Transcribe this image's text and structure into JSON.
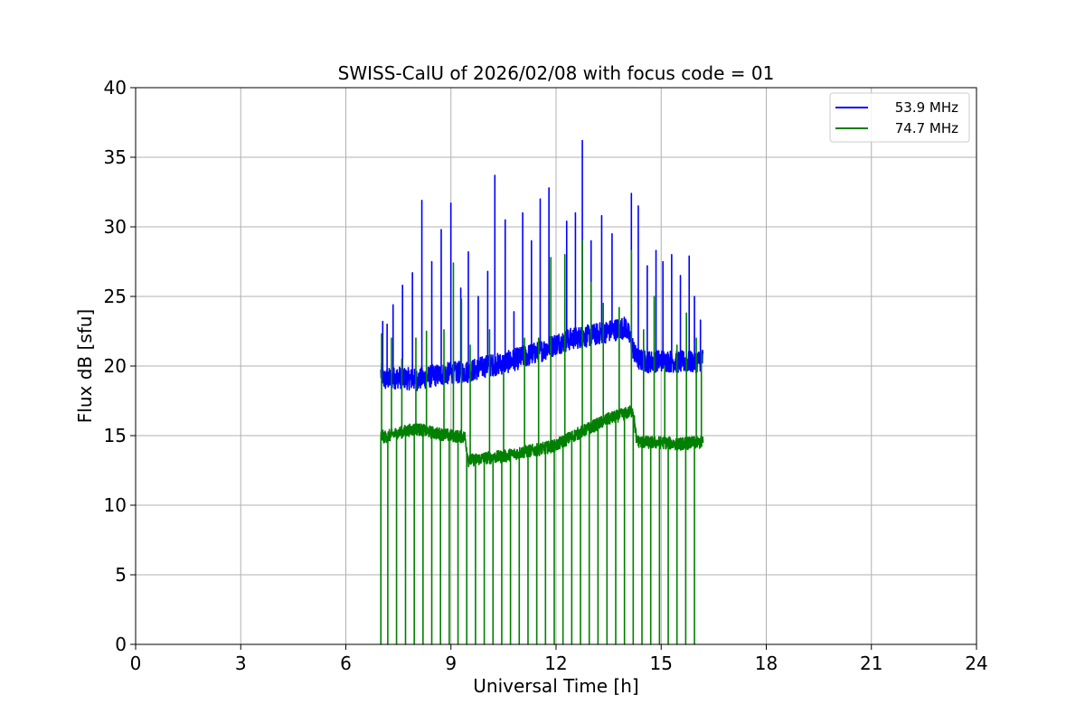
{
  "chart_data": {
    "type": "line",
    "title": "SWISS-CalU of 2026/02/08 with focus code = 01",
    "xlabel": "Universal Time [h]",
    "ylabel": "Flux dB [sfu]",
    "xlim": [
      0,
      24
    ],
    "ylim": [
      0,
      40
    ],
    "xticks": [
      0,
      3,
      6,
      9,
      12,
      15,
      18,
      21,
      24
    ],
    "yticks": [
      0,
      5,
      10,
      15,
      20,
      25,
      30,
      35,
      40
    ],
    "grid": true,
    "legend_position": "top-right",
    "series": [
      {
        "name": "53.9 MHz",
        "color": "#0000ff",
        "x": [
          7.0,
          7.1,
          7.5,
          8.0,
          8.5,
          9.0,
          9.5,
          10.0,
          10.5,
          11.0,
          11.5,
          12.0,
          12.5,
          13.0,
          13.5,
          14.0,
          14.3,
          14.6,
          15.0,
          15.5,
          16.0,
          16.2
        ],
        "y": [
          19.5,
          19.0,
          19.2,
          19.0,
          19.3,
          19.5,
          19.6,
          20.0,
          20.2,
          20.6,
          21.0,
          21.6,
          22.0,
          22.2,
          22.5,
          22.8,
          20.5,
          20.3,
          20.4,
          20.3,
          20.3,
          20.5
        ],
        "spikes": [
          {
            "x": 7.05,
            "y": 23.2
          },
          {
            "x": 7.18,
            "y": 23.0
          },
          {
            "x": 7.35,
            "y": 24.4
          },
          {
            "x": 7.62,
            "y": 25.8
          },
          {
            "x": 7.9,
            "y": 26.7
          },
          {
            "x": 8.17,
            "y": 31.9
          },
          {
            "x": 8.45,
            "y": 27.5
          },
          {
            "x": 8.72,
            "y": 29.8
          },
          {
            "x": 9.0,
            "y": 31.7
          },
          {
            "x": 9.28,
            "y": 25.6
          },
          {
            "x": 9.5,
            "y": 28.2
          },
          {
            "x": 9.78,
            "y": 25.0
          },
          {
            "x": 10.05,
            "y": 26.8
          },
          {
            "x": 10.25,
            "y": 33.7
          },
          {
            "x": 10.55,
            "y": 30.5
          },
          {
            "x": 10.8,
            "y": 23.9
          },
          {
            "x": 11.05,
            "y": 31.0
          },
          {
            "x": 11.3,
            "y": 29.0
          },
          {
            "x": 11.55,
            "y": 32.0
          },
          {
            "x": 11.8,
            "y": 32.8
          },
          {
            "x": 12.3,
            "y": 30.4
          },
          {
            "x": 12.55,
            "y": 31.0
          },
          {
            "x": 12.75,
            "y": 36.2
          },
          {
            "x": 13.0,
            "y": 29.0
          },
          {
            "x": 13.3,
            "y": 30.8
          },
          {
            "x": 13.6,
            "y": 29.5
          },
          {
            "x": 14.15,
            "y": 32.4
          },
          {
            "x": 14.35,
            "y": 31.5
          },
          {
            "x": 14.6,
            "y": 27.2
          },
          {
            "x": 14.85,
            "y": 28.3
          },
          {
            "x": 15.05,
            "y": 27.5
          },
          {
            "x": 15.3,
            "y": 28.0
          },
          {
            "x": 15.55,
            "y": 26.5
          },
          {
            "x": 15.8,
            "y": 27.9
          },
          {
            "x": 15.95,
            "y": 25.0
          },
          {
            "x": 16.12,
            "y": 23.3
          }
        ]
      },
      {
        "name": "74.7 MHz",
        "color": "#008000",
        "x": [
          7.0,
          7.1,
          7.5,
          8.0,
          8.5,
          9.0,
          9.4,
          9.5,
          10.0,
          10.5,
          11.0,
          11.5,
          12.0,
          12.5,
          13.0,
          13.5,
          14.0,
          14.2,
          14.3,
          14.6,
          15.0,
          15.5,
          16.0,
          16.2
        ],
        "y": [
          15.0,
          14.9,
          15.2,
          15.5,
          15.2,
          15.0,
          14.9,
          13.2,
          13.4,
          13.5,
          13.8,
          14.0,
          14.3,
          15.0,
          15.6,
          16.2,
          16.6,
          16.8,
          14.6,
          14.5,
          14.5,
          14.4,
          14.5,
          14.5
        ],
        "dropouts": [
          7.0,
          7.2,
          7.45,
          7.7,
          7.95,
          8.2,
          8.45,
          8.7,
          8.95,
          9.2,
          9.45,
          9.7,
          9.95,
          10.2,
          10.45,
          10.7,
          10.95,
          11.2,
          11.45,
          11.7,
          11.95,
          12.2,
          12.45,
          12.7,
          12.95,
          13.2,
          13.45,
          13.7,
          13.95,
          14.2,
          14.45,
          14.7,
          14.95,
          15.2,
          15.45,
          15.7,
          15.95
        ],
        "spikes": [
          {
            "x": 7.02,
            "y": 22.3
          },
          {
            "x": 7.3,
            "y": 22.0
          },
          {
            "x": 7.6,
            "y": 20.5
          },
          {
            "x": 8.0,
            "y": 22.0
          },
          {
            "x": 8.3,
            "y": 22.5
          },
          {
            "x": 8.8,
            "y": 22.6
          },
          {
            "x": 9.07,
            "y": 27.4
          },
          {
            "x": 9.3,
            "y": 24.8
          },
          {
            "x": 9.55,
            "y": 21.5
          },
          {
            "x": 10.1,
            "y": 22.6
          },
          {
            "x": 10.5,
            "y": 19.6
          },
          {
            "x": 11.1,
            "y": 22.0
          },
          {
            "x": 11.5,
            "y": 22.0
          },
          {
            "x": 11.85,
            "y": 27.8
          },
          {
            "x": 12.25,
            "y": 28.0
          },
          {
            "x": 12.75,
            "y": 29.0
          },
          {
            "x": 13.0,
            "y": 26.0
          },
          {
            "x": 13.35,
            "y": 24.5
          },
          {
            "x": 13.8,
            "y": 24.2
          },
          {
            "x": 14.15,
            "y": 28.3
          },
          {
            "x": 14.5,
            "y": 22.6
          },
          {
            "x": 14.8,
            "y": 25.0
          },
          {
            "x": 15.1,
            "y": 20.0
          },
          {
            "x": 15.45,
            "y": 21.5
          },
          {
            "x": 15.72,
            "y": 23.8
          },
          {
            "x": 16.0,
            "y": 22.0
          },
          {
            "x": 16.15,
            "y": 21.0
          }
        ]
      }
    ]
  }
}
